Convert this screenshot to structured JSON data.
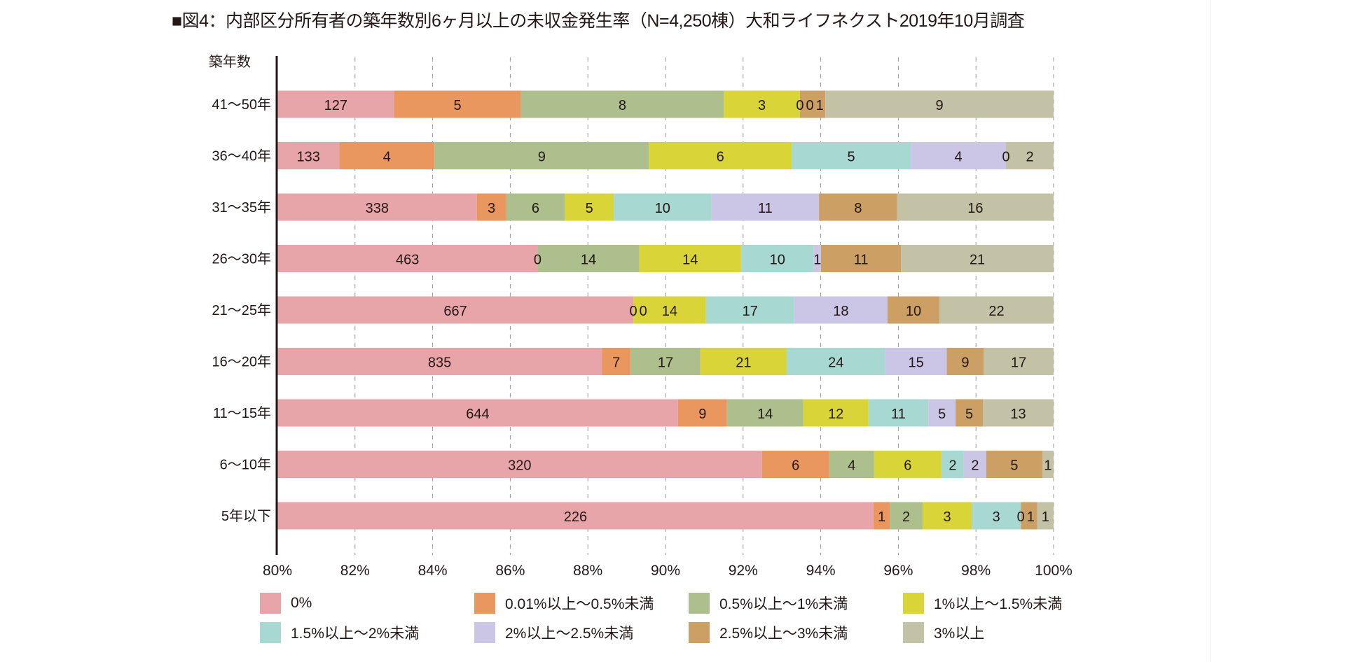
{
  "title": "■図4：内部区分所有者の築年数別6ヶ月以上の未収金発生率（N=4,250棟）大和ライフネクスト2019年10月調査",
  "chart_data": {
    "type": "bar",
    "orientation": "horizontal",
    "stacked": "percent",
    "ylabel": "築年数",
    "xlim": [
      80,
      100
    ],
    "x_ticks": [
      "80%",
      "82%",
      "84%",
      "86%",
      "88%",
      "90%",
      "92%",
      "94%",
      "96%",
      "98%",
      "100%"
    ],
    "grid": "vertical dashed",
    "legend_position": "bottom",
    "categories": [
      "41〜50年",
      "36〜40年",
      "31〜35年",
      "26〜30年",
      "21〜25年",
      "16〜20年",
      "11〜15年",
      "6〜10年",
      "5年以下"
    ],
    "series": [
      {
        "name": "0%",
        "color": "#e8a5a9",
        "values": [
          127,
          133,
          338,
          463,
          667,
          835,
          644,
          320,
          226
        ]
      },
      {
        "name": "0.01%以上〜0.5%未満",
        "color": "#e9975f",
        "values": [
          5,
          4,
          3,
          0,
          0,
          7,
          9,
          6,
          1
        ]
      },
      {
        "name": "0.5%以上〜1%未満",
        "color": "#adbf8d",
        "values": [
          8,
          9,
          6,
          14,
          0,
          17,
          14,
          4,
          2
        ]
      },
      {
        "name": "1%以上〜1.5%未満",
        "color": "#d9d438",
        "values": [
          3,
          6,
          5,
          14,
          14,
          21,
          12,
          6,
          3
        ]
      },
      {
        "name": "1.5%以上〜2%未満",
        "color": "#a8d8d2",
        "values": [
          0,
          5,
          10,
          10,
          17,
          24,
          11,
          2,
          3
        ]
      },
      {
        "name": "2%以上〜2.5%未満",
        "color": "#cbc5e6",
        "values": [
          0,
          4,
          11,
          1,
          18,
          15,
          5,
          2,
          0
        ]
      },
      {
        "name": "2.5%以上〜3%未満",
        "color": "#cca064",
        "values": [
          1,
          0,
          8,
          11,
          10,
          9,
          5,
          5,
          1
        ]
      },
      {
        "name": "3%以上",
        "color": "#c3c1a6",
        "values": [
          9,
          2,
          16,
          21,
          22,
          17,
          13,
          1,
          1
        ]
      }
    ]
  }
}
